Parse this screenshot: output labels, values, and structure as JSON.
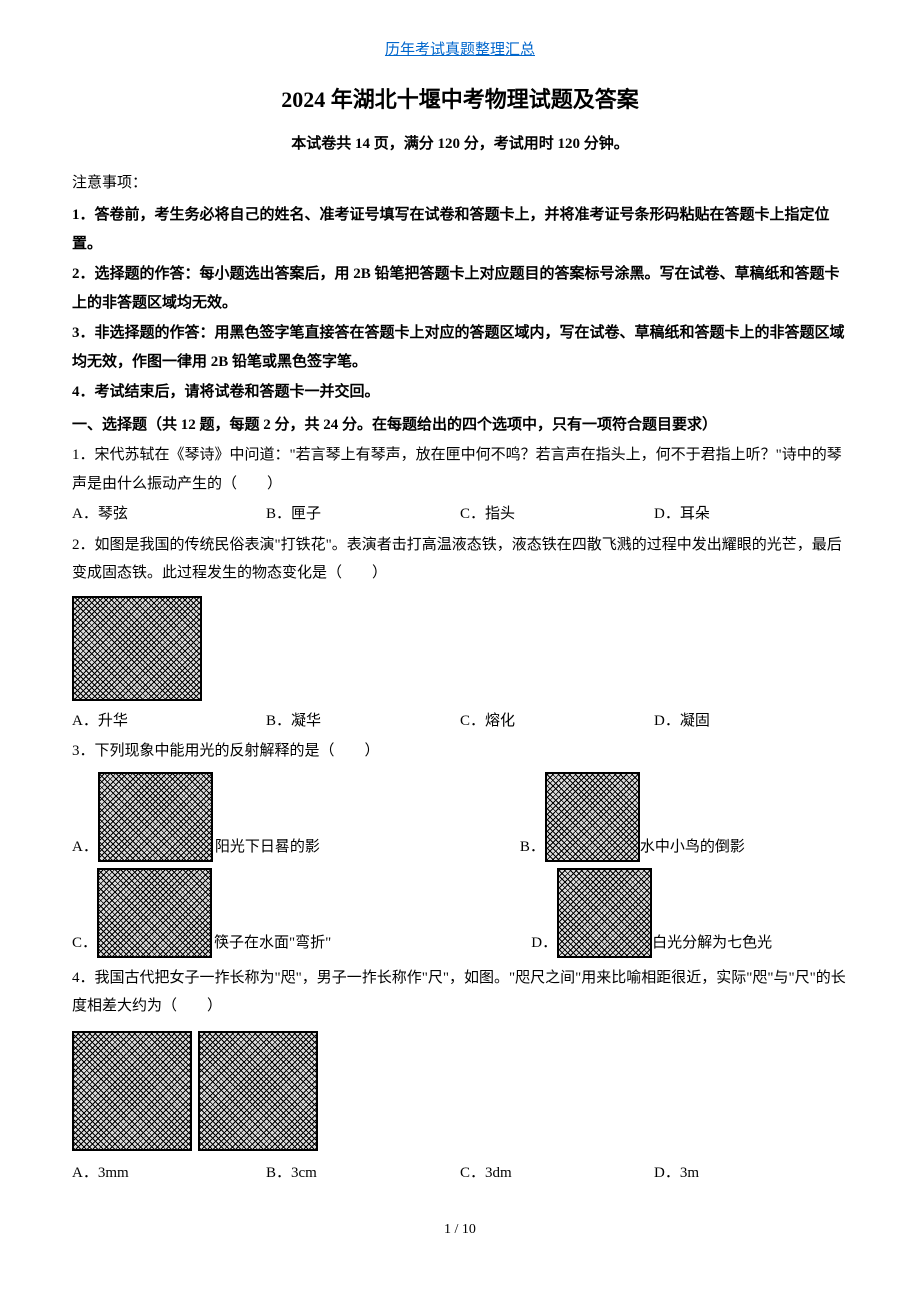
{
  "header": {
    "link_text": "历年考试真题整理汇总",
    "title": "2024 年湖北十堰中考物理试题及答案",
    "subtitle": "本试卷共 14 页，满分 120 分，考试用时 120 分钟。"
  },
  "notice": {
    "header": "注意事项：",
    "items": [
      "1．答卷前，考生务必将自己的姓名、准考证号填写在试卷和答题卡上，并将准考证号条形码粘贴在答题卡上指定位置。",
      "2．选择题的作答：每小题选出答案后，用 2B 铅笔把答题卡上对应题目的答案标号涂黑。写在试卷、草稿纸和答题卡上的非答题区域均无效。",
      "3．非选择题的作答：用黑色签字笔直接答在答题卡上对应的答题区域内，写在试卷、草稿纸和答题卡上的非答题区域均无效，作图一律用 2B 铅笔或黑色签字笔。",
      "4．考试结束后，请将试卷和答题卡一并交回。"
    ]
  },
  "section1": {
    "title": "一、选择题（共 12 题，每题 2 分，共 24 分。在每题给出的四个选项中，只有一项符合题目要求）"
  },
  "q1": {
    "text": "1．宋代苏轼在《琴诗》中问道：\"若言琴上有琴声，放在匣中何不鸣？若言声在指头上，何不于君指上听？\"诗中的琴声是由什么振动产生的（　　）",
    "options": {
      "a": "A．琴弦",
      "b": "B．匣子",
      "c": "C．指头",
      "d": "D．耳朵"
    }
  },
  "q2": {
    "text": "2．如图是我国的传统民俗表演\"打铁花\"。表演者击打高温液态铁，液态铁在四散飞溅的过程中发出耀眼的光芒，最后变成固态铁。此过程发生的物态变化是（　　）",
    "options": {
      "a": "A．升华",
      "b": "B．凝华",
      "c": "C．熔化",
      "d": "D．凝固"
    }
  },
  "q3": {
    "text": "3．下列现象中能用光的反射解释的是（　　）",
    "options": {
      "a_label": "A．",
      "a_text": "阳光下日晷的影",
      "b_label": "B．",
      "b_text": "水中小鸟的倒影",
      "c_label": "C．",
      "c_text": "筷子在水面\"弯折\"",
      "d_label": "D．",
      "d_text": "白光分解为七色光"
    }
  },
  "q4": {
    "text": "4．我国古代把女子一拃长称为\"咫\"，男子一拃长称作\"尺\"，如图。\"咫尺之间\"用来比喻相距很近，实际\"咫\"与\"尺\"的长度相差大约为（　　）",
    "options": {
      "a": "A．3mm",
      "b": "B．3cm",
      "c": "C．3dm",
      "d": "D．3m"
    }
  },
  "footer": {
    "page": "1 / 10"
  }
}
